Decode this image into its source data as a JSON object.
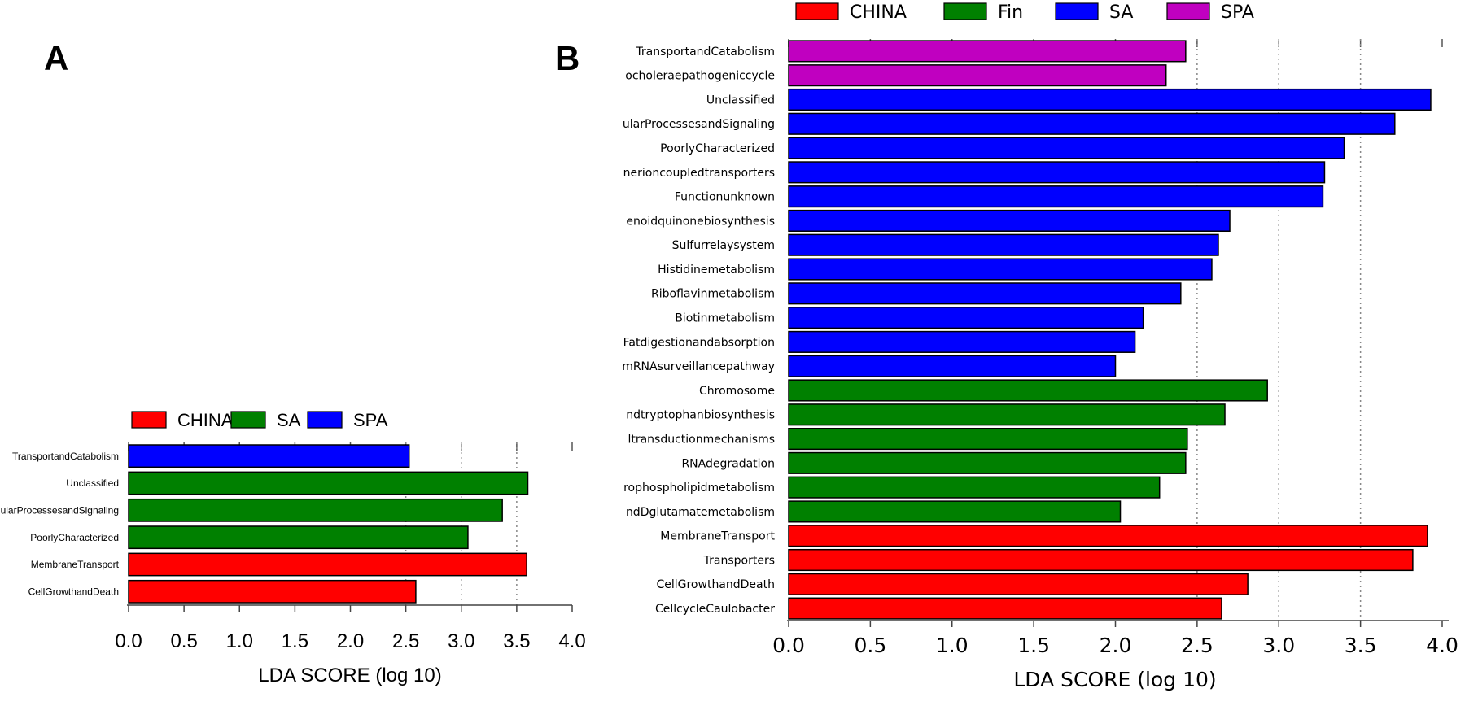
{
  "panels": {
    "a": "A",
    "b": "B"
  },
  "chart_data": [
    {
      "id": "A",
      "type": "bar",
      "orientation": "horizontal",
      "xlabel": "LDA SCORE (log 10)",
      "xlim": [
        0,
        4.0
      ],
      "xticks": [
        "0.0",
        "0.5",
        "1.0",
        "1.5",
        "2.0",
        "2.5",
        "3.0",
        "3.5",
        "4.0"
      ],
      "legend": [
        {
          "name": "CHINA",
          "color": "#ff0000"
        },
        {
          "name": "SA",
          "color": "#008000"
        },
        {
          "name": "SPA",
          "color": "#0000ff"
        }
      ],
      "legend_position": "top",
      "bars": [
        {
          "label": "TransportandCatabolism",
          "value": 2.53,
          "group": "SPA"
        },
        {
          "label": "Unclassified",
          "value": 3.6,
          "group": "SA"
        },
        {
          "label": "ularProcessesandSignaling",
          "value": 3.37,
          "group": "SA"
        },
        {
          "label": "PoorlyCharacterized",
          "value": 3.06,
          "group": "SA"
        },
        {
          "label": "MembraneTransport",
          "value": 3.59,
          "group": "CHINA"
        },
        {
          "label": "CellGrowthandDeath",
          "value": 2.59,
          "group": "CHINA"
        }
      ]
    },
    {
      "id": "B",
      "type": "bar",
      "orientation": "horizontal",
      "xlabel": "LDA SCORE (log 10)",
      "xlim": [
        0,
        4.0
      ],
      "xticks": [
        "0.0",
        "0.5",
        "1.0",
        "1.5",
        "2.0",
        "2.5",
        "3.0",
        "3.5",
        "4.0"
      ],
      "legend": [
        {
          "name": "CHINA",
          "color": "#ff0000"
        },
        {
          "name": "Fin",
          "color": "#008000"
        },
        {
          "name": "SA",
          "color": "#0000ff"
        },
        {
          "name": "SPA",
          "color": "#c000c0"
        }
      ],
      "legend_position": "top",
      "bars": [
        {
          "label": "TransportandCatabolism",
          "value": 2.43,
          "group": "SPA"
        },
        {
          "label": "ocholeraepathogeniccycle",
          "value": 2.31,
          "group": "SPA"
        },
        {
          "label": "Unclassified",
          "value": 3.93,
          "group": "SA"
        },
        {
          "label": "ularProcessesandSignaling",
          "value": 3.71,
          "group": "SA"
        },
        {
          "label": "PoorlyCharacterized",
          "value": 3.4,
          "group": "SA"
        },
        {
          "label": "nerioncoupledtransporters",
          "value": 3.28,
          "group": "SA"
        },
        {
          "label": "Functionunknown",
          "value": 3.27,
          "group": "SA"
        },
        {
          "label": "enoidquinonebiosynthesis",
          "value": 2.7,
          "group": "SA"
        },
        {
          "label": "Sulfurrelaysystem",
          "value": 2.63,
          "group": "SA"
        },
        {
          "label": "Histidinemetabolism",
          "value": 2.59,
          "group": "SA"
        },
        {
          "label": "Riboflavinmetabolism",
          "value": 2.4,
          "group": "SA"
        },
        {
          "label": "Biotinmetabolism",
          "value": 2.17,
          "group": "SA"
        },
        {
          "label": "Fatdigestionandabsorption",
          "value": 2.12,
          "group": "SA"
        },
        {
          "label": "mRNAsurveillancepathway",
          "value": 2.0,
          "group": "SA"
        },
        {
          "label": "Chromosome",
          "value": 2.93,
          "group": "Fin"
        },
        {
          "label": "ndtryptophanbiosynthesis",
          "value": 2.67,
          "group": "Fin"
        },
        {
          "label": "ltransductionmechanisms",
          "value": 2.44,
          "group": "Fin"
        },
        {
          "label": "RNAdegradation",
          "value": 2.43,
          "group": "Fin"
        },
        {
          "label": "rophospholipidmetabolism",
          "value": 2.27,
          "group": "Fin"
        },
        {
          "label": "ndDglutamatemetabolism",
          "value": 2.03,
          "group": "Fin"
        },
        {
          "label": "MembraneTransport",
          "value": 3.91,
          "group": "CHINA"
        },
        {
          "label": "Transporters",
          "value": 3.82,
          "group": "CHINA"
        },
        {
          "label": "CellGrowthandDeath",
          "value": 2.81,
          "group": "CHINA"
        },
        {
          "label": "CellcycleCaulobacter",
          "value": 2.65,
          "group": "CHINA"
        }
      ]
    }
  ]
}
